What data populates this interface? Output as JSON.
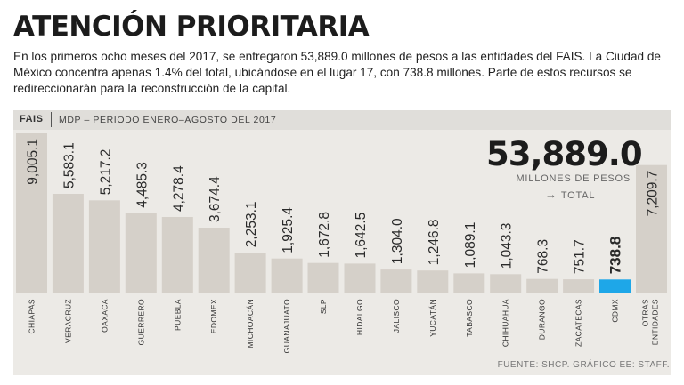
{
  "title": "ATENCIÓN PRIORITARIA",
  "lede": "En los primeros ocho meses del 2017, se entregaron 53,889.0 millones de pesos a las entidades del FAIS. La Ciudad de México concentra apenas 1.4% del total, ubicándose en el lugar 17, con 738.8 millones. Parte de estos recursos se redireccionarán para la reconstrucción de la capital.",
  "header": {
    "tag": "FAIS",
    "subtitle": "MDP – PERIODO ENERO–AGOSTO DEL 2017"
  },
  "total": {
    "value": "53,889.0",
    "units": "MILLONES DE PESOS",
    "label": "TOTAL",
    "arrow": "→"
  },
  "source": "FUENTE: SHCP. GRÁFICO EE: STAFF.",
  "colors": {
    "bar": "#d5d0c9",
    "highlight": "#1ea7e8",
    "panel": "#eceae6",
    "text": "#222222"
  },
  "chart_data": {
    "type": "bar",
    "title": "",
    "xlabel": "",
    "ylabel": "",
    "ylim": [
      0,
      9005.1
    ],
    "highlight": "CDMX",
    "categories": [
      "CHIAPAS",
      "VERACRUZ",
      "OAXACA",
      "GUERRERO",
      "PUEBLA",
      "EDOMEX",
      "MICHOACÁN",
      "GUANAJUATO",
      "SLP",
      "HIDALGO",
      "JALISCO",
      "YUCATÁN",
      "TABASCO",
      "CHIHUAHUA",
      "DURANGO",
      "ZACATECAS",
      "CDMX",
      "OTRAS ENTIDADES"
    ],
    "values": [
      9005.1,
      5583.1,
      5217.2,
      4485.3,
      4278.4,
      3674.4,
      2253.1,
      1925.4,
      1672.8,
      1642.5,
      1304.0,
      1246.8,
      1089.1,
      1043.3,
      768.3,
      751.7,
      738.8,
      7209.7
    ],
    "value_labels": [
      "9,005.1",
      "5,583.1",
      "5,217.2",
      "4,485.3",
      "4,278.4",
      "3,674.4",
      "2,253.1",
      "1,925.4",
      "1,672.8",
      "1,642.5",
      "1,304.0",
      "1,246.8",
      "1,089.1",
      "1,043.3",
      "768.3",
      "751.7",
      "738.8",
      "7,209.7"
    ]
  }
}
